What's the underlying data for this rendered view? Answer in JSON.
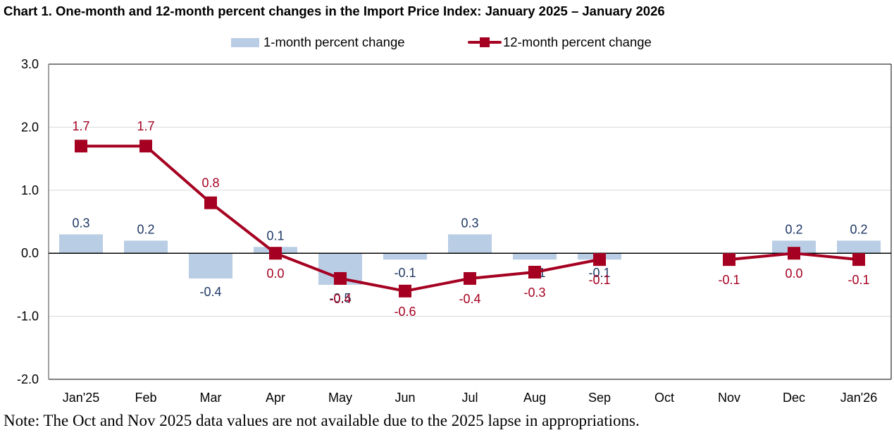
{
  "chart_data": {
    "type": "bar",
    "title": "Chart 1. One-month and 12-month percent changes in the Import Price Index: January 2025 – January 2026",
    "xlabel": "",
    "ylabel": "",
    "categories": [
      "Jan'25",
      "Feb",
      "Mar",
      "Apr",
      "May",
      "Jun",
      "Jul",
      "Aug",
      "Sep",
      "Oct",
      "Nov",
      "Dec",
      "Jan'26"
    ],
    "ylim": [
      -2.0,
      3.0
    ],
    "yticks": [
      3.0,
      2.0,
      1.0,
      0.0,
      -1.0,
      -2.0
    ],
    "ytick_labels": [
      "3.0",
      "2.0",
      "1.0",
      "0.0",
      "-1.0",
      "-2.0"
    ],
    "grid": true,
    "legend_position": "top-center",
    "series": [
      {
        "name": "1-month percent change",
        "type": "bar",
        "color": "#B9CDE5",
        "label_color": "#1F3864",
        "values": [
          0.3,
          0.2,
          -0.4,
          0.1,
          -0.5,
          -0.1,
          0.3,
          -0.1,
          -0.1,
          null,
          null,
          0.2,
          0.2
        ],
        "labels": [
          "0.3",
          "0.2",
          "-0.4",
          "0.1",
          "-0.5",
          "-0.1",
          "0.3",
          "-0.1",
          "-0.1",
          "",
          "",
          "0.2",
          "0.2"
        ]
      },
      {
        "name": "12-month percent change",
        "type": "line",
        "marker": "square",
        "color": "#A50021",
        "label_color": "#A50021",
        "values": [
          1.7,
          1.7,
          0.8,
          0.0,
          -0.4,
          -0.6,
          -0.4,
          -0.3,
          -0.1,
          null,
          -0.1,
          0.0,
          -0.1
        ],
        "labels": [
          "1.7",
          "1.7",
          "0.8",
          "0.0",
          "-0.4",
          "-0.6",
          "-0.4",
          "-0.3",
          "-0.1",
          "",
          "-0.1",
          "0.0",
          "-0.1"
        ]
      }
    ],
    "annotation": "Note: The Oct and Nov 2025 data values are not available due to the 2025 lapse in appropriations."
  }
}
